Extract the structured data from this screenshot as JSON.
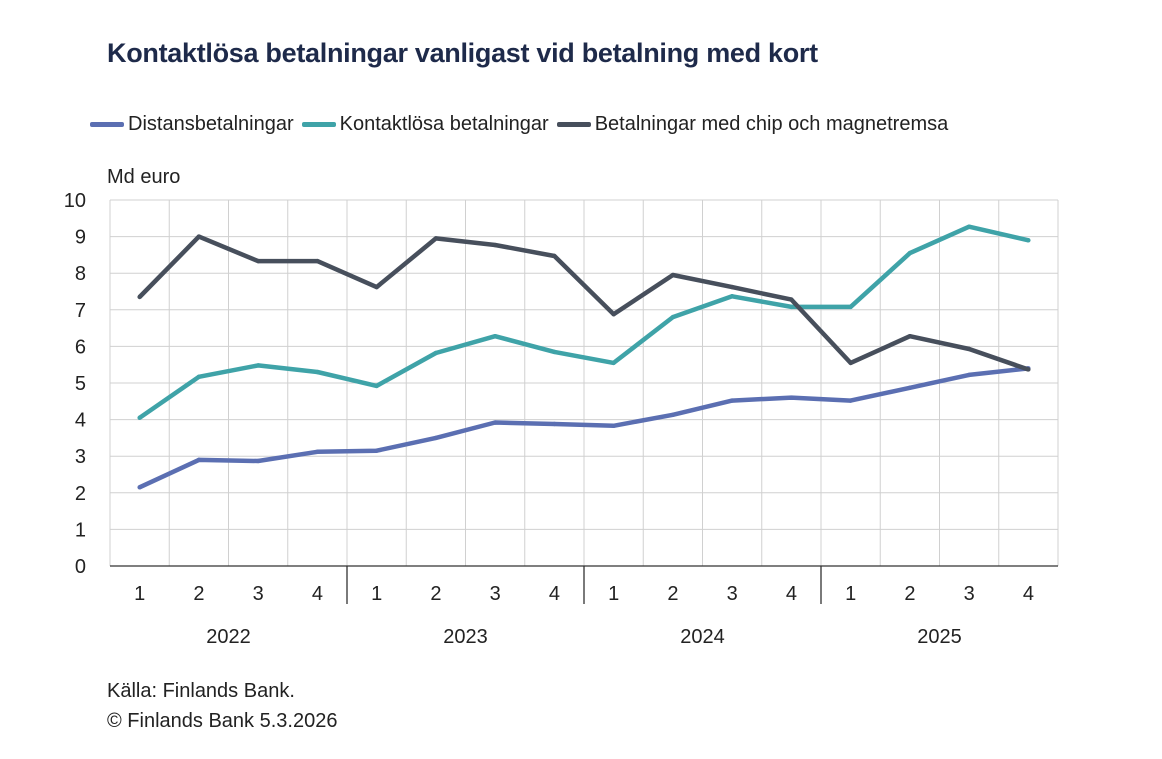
{
  "title": "Kontaktlösa betalningar vanligast vid betalning med kort",
  "unit_label": "Md euro",
  "source_line": "Källa: Finlands Bank.",
  "copyright_line": "© Finlands Bank 5.3.2026",
  "chart_data": {
    "type": "line",
    "title": "Kontaktlösa betalningar vanligast vid betalning med kort",
    "ylabel": "Md euro",
    "ylim": [
      0,
      10
    ],
    "yticks": [
      "0",
      "1",
      "2",
      "3",
      "4",
      "5",
      "6",
      "7",
      "8",
      "9",
      "10"
    ],
    "grid": true,
    "legend_position": "top",
    "quarter_labels": [
      "1",
      "2",
      "3",
      "4",
      "1",
      "2",
      "3",
      "4",
      "1",
      "2",
      "3",
      "4",
      "1",
      "2",
      "3",
      "4"
    ],
    "years": [
      "2022",
      "2023",
      "2024",
      "2025"
    ],
    "series": [
      {
        "name": "Distansbetalningar",
        "color": "#5b6fb2",
        "values": [
          2.15,
          2.9,
          2.87,
          3.12,
          3.15,
          3.5,
          3.92,
          3.88,
          3.83,
          4.13,
          4.52,
          4.6,
          4.52,
          4.87,
          5.22,
          5.4
        ]
      },
      {
        "name": "Kontaktlösa betalningar",
        "color": "#3fa3a8",
        "values": [
          4.05,
          5.17,
          5.48,
          5.3,
          4.92,
          5.82,
          6.28,
          5.85,
          5.55,
          6.8,
          7.37,
          7.08,
          7.08,
          8.55,
          9.27,
          8.9
        ]
      },
      {
        "name": "Betalningar med chip och magnetremsa",
        "color": "#474f5c",
        "values": [
          7.35,
          9.0,
          8.33,
          8.33,
          7.62,
          8.95,
          8.77,
          8.47,
          6.88,
          7.95,
          7.62,
          7.28,
          5.55,
          6.28,
          5.93,
          5.37
        ]
      }
    ]
  }
}
